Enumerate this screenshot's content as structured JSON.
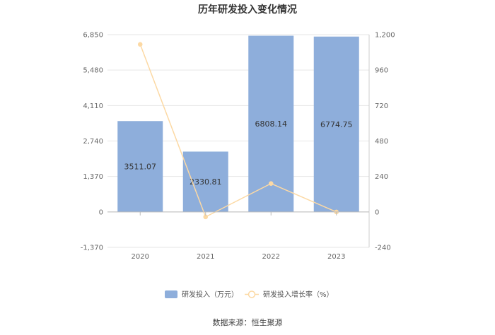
{
  "chart_data": {
    "type": "bar",
    "title": "历年研发投入变化情况",
    "categories": [
      "2020",
      "2021",
      "2022",
      "2023"
    ],
    "series": [
      {
        "name": "研发投入（万元）",
        "type": "bar",
        "axis": "left",
        "values": [
          3511.07,
          2330.81,
          6808.14,
          6774.75
        ],
        "labels": [
          "3511.07",
          "2330.81",
          "6808.14",
          "6774.75"
        ],
        "color": "#8eaedb"
      },
      {
        "name": "研发投入增长率（%）",
        "type": "line",
        "axis": "right",
        "values": [
          1134,
          -33.6,
          192.1,
          -0.5
        ],
        "color": "#fcd9a4"
      }
    ],
    "y_left": {
      "ticks": [
        -1370,
        0,
        1370,
        2740,
        4110,
        5480,
        6850
      ],
      "tick_labels": [
        "-1,370",
        "0",
        "1,370",
        "2,740",
        "4,110",
        "5,480",
        "6,850"
      ],
      "lim": [
        -1370,
        6850
      ]
    },
    "y_right": {
      "ticks": [
        -240,
        0,
        240,
        480,
        720,
        960,
        1200
      ],
      "tick_labels": [
        "-240",
        "0",
        "240",
        "480",
        "720",
        "960",
        "1,200"
      ],
      "lim": [
        -240,
        1200
      ]
    },
    "grid": true,
    "legend_position": "bottom"
  },
  "footer": {
    "source": "数据来源：恒生聚源"
  }
}
